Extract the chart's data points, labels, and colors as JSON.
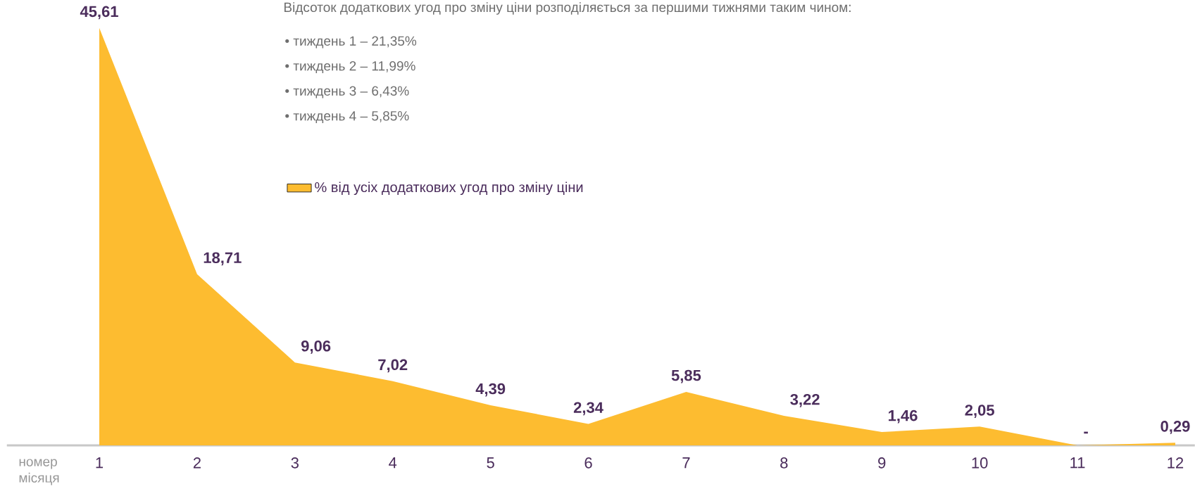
{
  "chart_data": {
    "type": "area",
    "categories": [
      "1",
      "2",
      "3",
      "4",
      "5",
      "6",
      "7",
      "8",
      "9",
      "10",
      "11",
      "12"
    ],
    "series": [
      {
        "name": "% від усіх додаткових угод про зміну ціни",
        "color": "#fdbc30",
        "values": [
          45.61,
          18.71,
          9.06,
          7.02,
          4.39,
          2.34,
          5.85,
          3.22,
          1.46,
          2.05,
          0,
          0.29
        ],
        "value_labels": [
          "45,61",
          "18,71",
          "9,06",
          "7,02",
          "4,39",
          "2,34",
          "5,85",
          "3,22",
          "1,46",
          "2,05",
          "-",
          "0,29"
        ]
      }
    ],
    "xlabel": "номер місяця",
    "annotations": [
      "Відсоток додаткових угод про зміну ціни розподіляється за першими тижнями таким чином:",
      "•   тиждень 1 – 21,35%",
      "•   тиждень 2 – 11,99%",
      "•   тиждень 3 – 6,43%",
      "•   тиждень 4 – 5,85%"
    ],
    "legend": "top left",
    "grid": false
  }
}
